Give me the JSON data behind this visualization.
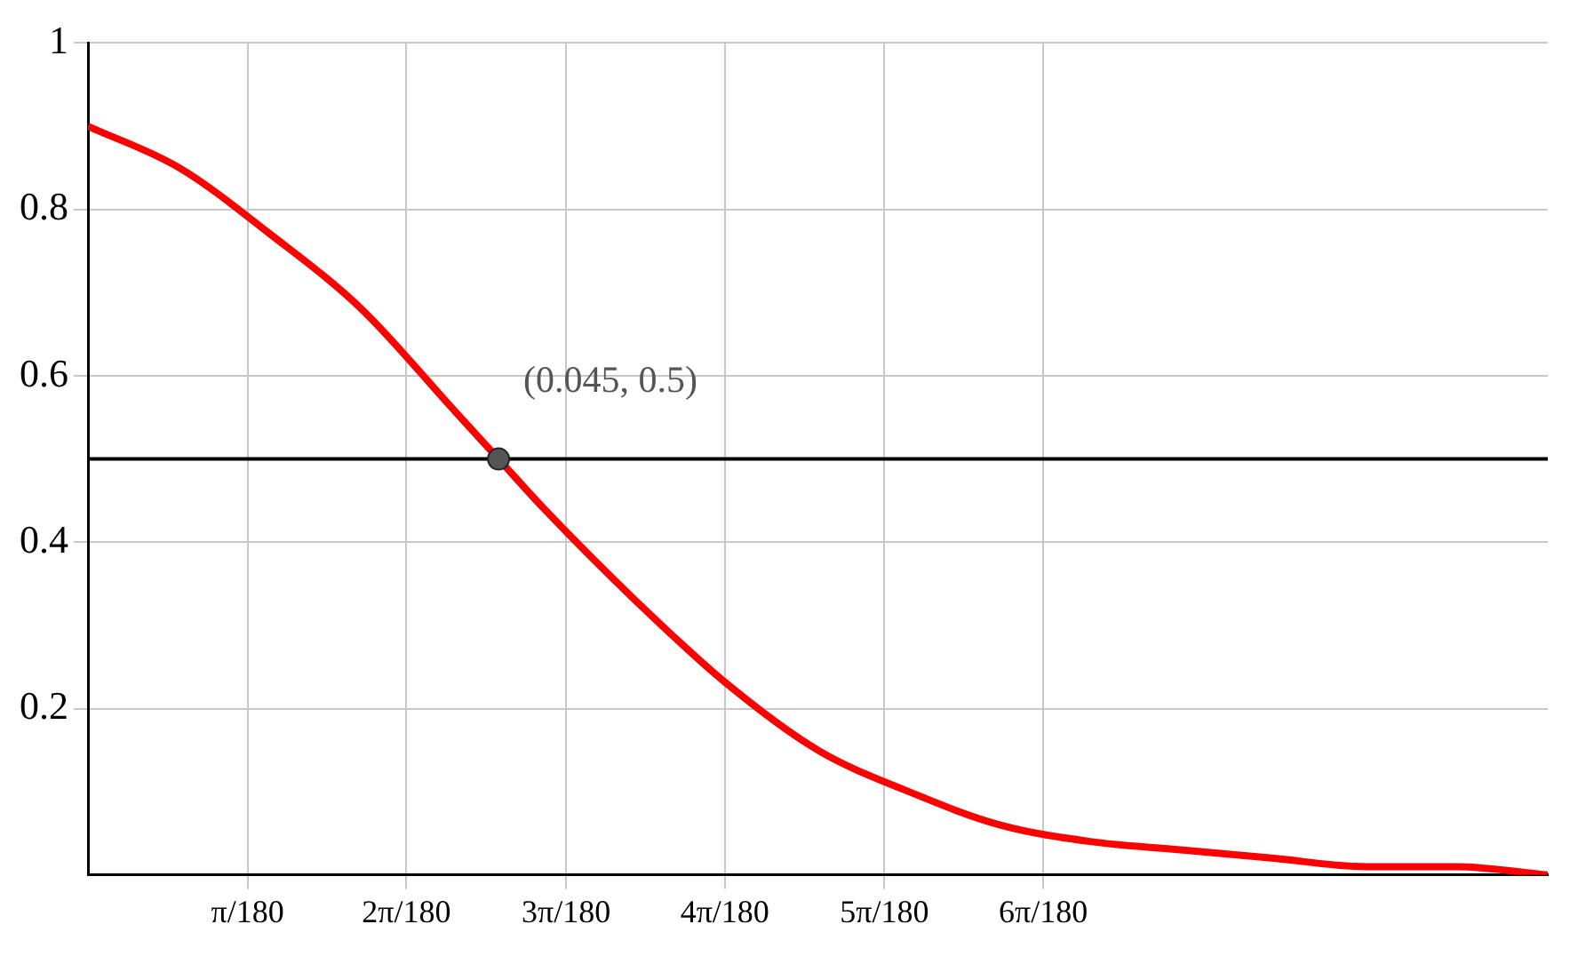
{
  "chart_data": {
    "type": "line",
    "x": [
      0,
      0.01,
      0.02,
      0.03,
      0.04,
      0.045,
      0.05,
      0.06,
      0.07,
      0.08,
      0.09,
      0.1,
      0.11,
      0.12,
      0.13,
      0.14,
      0.15,
      0.16
    ],
    "series": [
      {
        "color": "#ff0000",
        "marker": "none",
        "values": [
          0.9,
          0.85,
          0.77,
          0.68,
          0.56,
          0.5,
          0.44,
          0.33,
          0.23,
          0.15,
          0.1,
          0.06,
          0.04,
          0.03,
          0.02,
          0.01,
          0.01,
          0
        ]
      },
      {
        "type": "scatter",
        "marker": "circle",
        "color": "#555555",
        "x": [
          0.045
        ],
        "values": [
          0.5
        ]
      }
    ],
    "xlim": [
      0,
      0.16
    ],
    "ylim": [
      0,
      1
    ],
    "xticks": [
      {
        "value": 0.0175,
        "label": "π/180"
      },
      {
        "value": 0.0349,
        "label": "2π/180"
      },
      {
        "value": 0.0524,
        "label": "3π/180"
      },
      {
        "value": 0.0698,
        "label": "4π/180"
      },
      {
        "value": 0.0873,
        "label": "5π/180"
      },
      {
        "value": 0.1047,
        "label": "6π/180"
      }
    ],
    "yticks": [
      0.2,
      0.4,
      0.6,
      0.8,
      1
    ],
    "grid": true,
    "line_style": "solid",
    "ref_lines": [
      {
        "axis": "y",
        "value": 0.5,
        "color": "#000000"
      }
    ],
    "annotations": [
      {
        "text": "(0.045, 0.5)",
        "x": 0.045,
        "y": 0.5
      }
    ]
  }
}
